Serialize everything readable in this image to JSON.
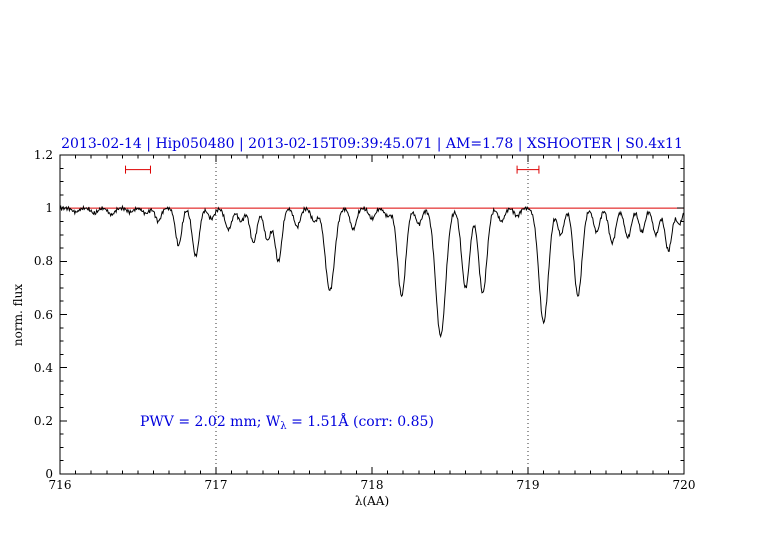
{
  "title": "2013-02-14 | Hip050480 | 2013-02-15T09:39:45.071 | AM=1.78 | XSHOOTER | S0.4x11",
  "colors": {
    "title": "#0000dd",
    "annotation": "#0000dd",
    "continuum": "#dd0000",
    "band_marker": "#dd0000",
    "spectrum": "#000000",
    "vline": "#333333"
  },
  "annotation": {
    "part1": "PWV  =  2.02 mm; W",
    "sub": "λ",
    "part2": "  =  1.51Å (corr: 0.85)",
    "full_text": "PWV = 2.02 mm; Wλ = 1.51Å (corr: 0.85)"
  },
  "chart_data": {
    "type": "line",
    "title": "2013-02-14 | Hip050480 | 2013-02-15T09:39:45.071 | AM=1.78 | XSHOOTER | S0.4x11",
    "xlabel": "λ(AA)",
    "ylabel": "norm. flux",
    "xlim": [
      716,
      720
    ],
    "ylim": [
      0,
      1.2
    ],
    "x_ticks": [
      "716",
      "717",
      "718",
      "719",
      "720"
    ],
    "y_ticks": [
      "0",
      "0.2",
      "0.4",
      "0.6",
      "0.8",
      "1",
      "1.2"
    ],
    "legend": "none",
    "grid": "dotted vertical lines at 717 and 719",
    "continuum_level": 1.0,
    "vlines": [
      717,
      719
    ],
    "band_markers": [
      {
        "x1": 716.42,
        "x2": 716.58,
        "y": 1.145
      },
      {
        "x1": 718.93,
        "x2": 719.07,
        "y": 1.145
      }
    ],
    "absorption_lines_format": "[center_AA, depth_normflux, sigma_AA]",
    "absorption_lines": [
      [
        716.1,
        0.015,
        0.02
      ],
      [
        716.22,
        0.02,
        0.02
      ],
      [
        716.33,
        0.025,
        0.02
      ],
      [
        716.45,
        0.015,
        0.02
      ],
      [
        716.55,
        0.02,
        0.02
      ],
      [
        716.63,
        0.05,
        0.018
      ],
      [
        716.76,
        0.14,
        0.02
      ],
      [
        716.87,
        0.18,
        0.022
      ],
      [
        716.97,
        0.04,
        0.02
      ],
      [
        717.08,
        0.08,
        0.022
      ],
      [
        717.16,
        0.05,
        0.02
      ],
      [
        717.24,
        0.13,
        0.022
      ],
      [
        717.33,
        0.12,
        0.022
      ],
      [
        717.4,
        0.2,
        0.022
      ],
      [
        717.52,
        0.07,
        0.02
      ],
      [
        717.63,
        0.05,
        0.02
      ],
      [
        717.73,
        0.31,
        0.03
      ],
      [
        717.88,
        0.08,
        0.02
      ],
      [
        718.0,
        0.04,
        0.02
      ],
      [
        718.1,
        0.03,
        0.02
      ],
      [
        718.19,
        0.33,
        0.026
      ],
      [
        718.3,
        0.06,
        0.02
      ],
      [
        718.44,
        0.48,
        0.032
      ],
      [
        718.6,
        0.3,
        0.026
      ],
      [
        718.71,
        0.32,
        0.026
      ],
      [
        718.83,
        0.05,
        0.02
      ],
      [
        718.93,
        0.03,
        0.018
      ],
      [
        719.1,
        0.43,
        0.03
      ],
      [
        719.21,
        0.1,
        0.02
      ],
      [
        719.32,
        0.33,
        0.026
      ],
      [
        719.44,
        0.09,
        0.02
      ],
      [
        719.54,
        0.13,
        0.022
      ],
      [
        719.64,
        0.11,
        0.022
      ],
      [
        719.73,
        0.09,
        0.02
      ],
      [
        719.82,
        0.1,
        0.02
      ],
      [
        719.9,
        0.16,
        0.022
      ],
      [
        719.97,
        0.06,
        0.018
      ]
    ]
  }
}
